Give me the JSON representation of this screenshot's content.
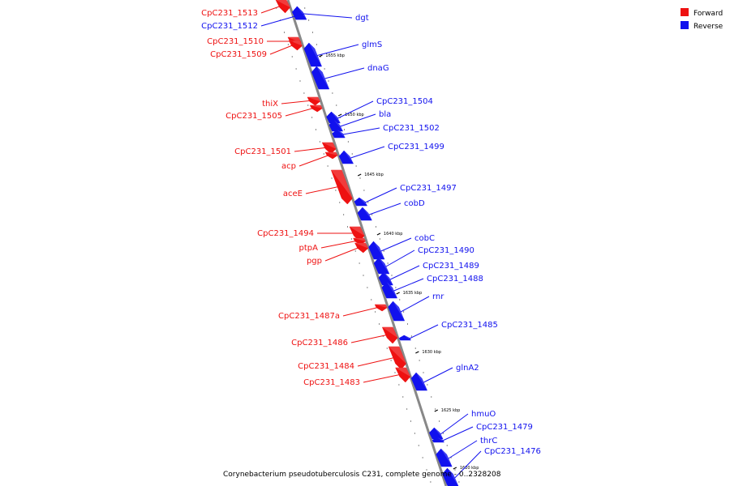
{
  "colors": {
    "forward": "#ee1111",
    "reverse": "#1111ee",
    "axis": "#888888"
  },
  "legend": {
    "forward": "Forward",
    "reverse": "Reverse"
  },
  "caption": "Corynebacterium pseudotuberculosis C231, complete genome - 0..2328208",
  "ticks": [
    "1655 kbp",
    "1650 kbp",
    "1645 kbp",
    "1640 kbp",
    "1635 kbp",
    "1630 kbp",
    "1625 kbp",
    "1620 kbp"
  ],
  "genes": [
    {
      "name": "CpC231_1513",
      "strand": "forward"
    },
    {
      "name": "CpC231_1512",
      "strand": "reverse"
    },
    {
      "name": "dgt",
      "strand": "reverse"
    },
    {
      "name": "CpC231_1510",
      "strand": "forward"
    },
    {
      "name": "CpC231_1509",
      "strand": "forward"
    },
    {
      "name": "glmS",
      "strand": "reverse"
    },
    {
      "name": "dnaG",
      "strand": "reverse"
    },
    {
      "name": "CpC231_1504",
      "strand": "reverse"
    },
    {
      "name": "thiX",
      "strand": "forward"
    },
    {
      "name": "bla",
      "strand": "reverse"
    },
    {
      "name": "CpC231_1505",
      "strand": "forward"
    },
    {
      "name": "CpC231_1502",
      "strand": "reverse"
    },
    {
      "name": "CpC231_1499",
      "strand": "reverse"
    },
    {
      "name": "CpC231_1501",
      "strand": "forward"
    },
    {
      "name": "acp",
      "strand": "forward"
    },
    {
      "name": "aceE",
      "strand": "forward"
    },
    {
      "name": "CpC231_1497",
      "strand": "reverse"
    },
    {
      "name": "cobD",
      "strand": "reverse"
    },
    {
      "name": "CpC231_1494",
      "strand": "forward"
    },
    {
      "name": "cobC",
      "strand": "reverse"
    },
    {
      "name": "ptpA",
      "strand": "forward"
    },
    {
      "name": "CpC231_1490",
      "strand": "reverse"
    },
    {
      "name": "pgp",
      "strand": "forward"
    },
    {
      "name": "CpC231_1489",
      "strand": "reverse"
    },
    {
      "name": "CpC231_1488",
      "strand": "reverse"
    },
    {
      "name": "rnr",
      "strand": "reverse"
    },
    {
      "name": "CpC231_1487a",
      "strand": "forward"
    },
    {
      "name": "CpC231_1485",
      "strand": "reverse"
    },
    {
      "name": "CpC231_1486",
      "strand": "forward"
    },
    {
      "name": "CpC231_1484",
      "strand": "forward"
    },
    {
      "name": "glnA2",
      "strand": "reverse"
    },
    {
      "name": "CpC231_1483",
      "strand": "forward"
    },
    {
      "name": "hmuO",
      "strand": "reverse"
    },
    {
      "name": "CpC231_1479",
      "strand": "reverse"
    },
    {
      "name": "thrC",
      "strand": "reverse"
    },
    {
      "name": "CpC231_1476",
      "strand": "reverse"
    }
  ]
}
